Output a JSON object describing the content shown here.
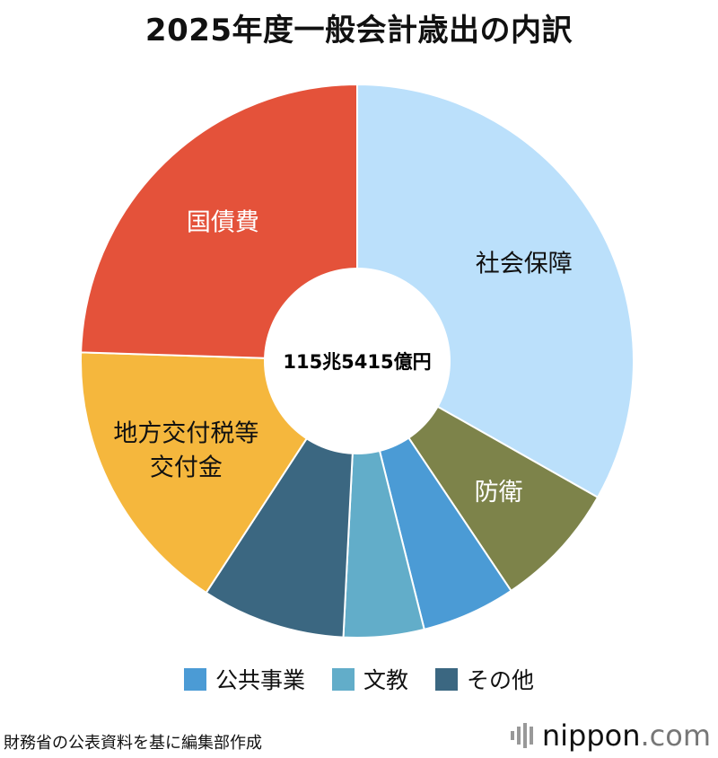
{
  "title": "2025年度一般会計歳出の内訳",
  "center_label": "115兆5415億円",
  "source": "財務省の公表資料を基に編集部作成",
  "brand": {
    "name": "nippon",
    "tld": ".com"
  },
  "legend": [
    {
      "label": "公共事業",
      "color": "#4b9bd5"
    },
    {
      "label": "文教",
      "color": "#62adc9"
    },
    {
      "label": "その他",
      "color": "#3b6781"
    }
  ],
  "chart_data": {
    "type": "pie",
    "title": "2025年度一般会計歳出の内訳",
    "total_label": "115兆5415億円",
    "slices": [
      {
        "label": "社会保障",
        "value": 33.2,
        "color": "#bbe0fb",
        "text_color": "#111111",
        "label_lines": [
          "社会保障"
        ]
      },
      {
        "label": "防衛",
        "value": 7.4,
        "color": "#7d834a",
        "text_color": "#ffffff",
        "label_lines": [
          "防衛"
        ]
      },
      {
        "label": "公共事業",
        "value": 5.5,
        "color": "#4b9bd5",
        "text_color": null,
        "label_lines": []
      },
      {
        "label": "文教",
        "value": 4.7,
        "color": "#62adc9",
        "text_color": null,
        "label_lines": []
      },
      {
        "label": "その他",
        "value": 8.4,
        "color": "#3b6781",
        "text_color": null,
        "label_lines": []
      },
      {
        "label": "地方交付税等交付金",
        "value": 16.3,
        "color": "#f5b73d",
        "text_color": "#111111",
        "label_lines": [
          "地方交付税等",
          "交付金"
        ]
      },
      {
        "label": "国債費",
        "value": 24.5,
        "color": "#e4523a",
        "text_color": "#ffffff",
        "label_lines": [
          "国債費"
        ]
      }
    ]
  }
}
